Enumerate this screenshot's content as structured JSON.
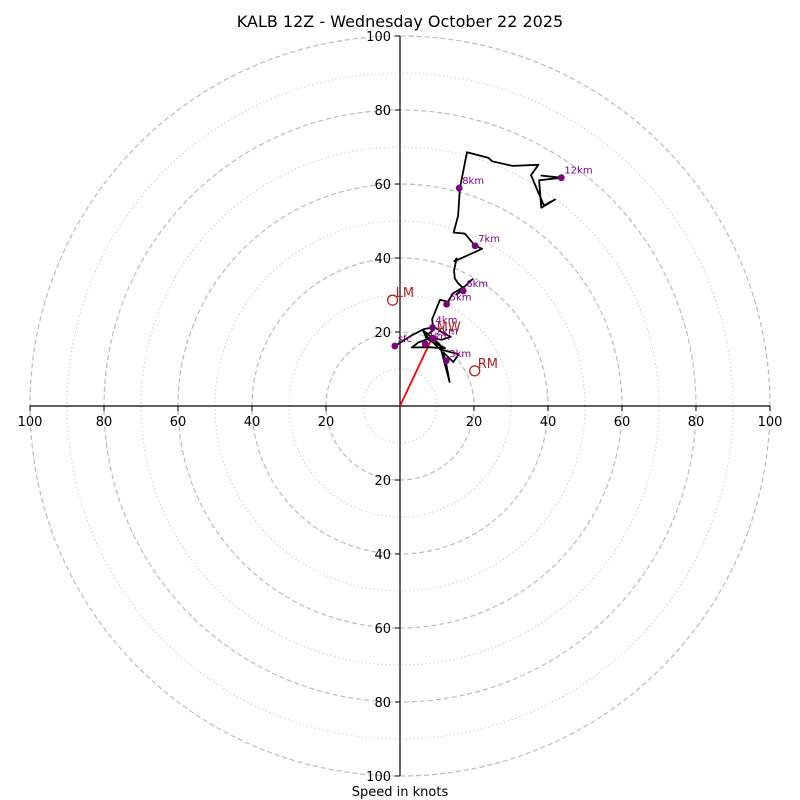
{
  "chart_data": {
    "type": "hodograph",
    "title": "KALB 12Z - Wednesday October 22 2025",
    "xlabel": "Speed in knots",
    "units": "knots",
    "axis_range": [
      -100,
      100
    ],
    "dashed_rings": [
      20,
      40,
      60,
      80,
      100
    ],
    "dotted_rings": [
      10,
      30,
      50,
      70,
      90
    ],
    "tick_labels": {
      "x_left": [
        "100",
        "80",
        "60",
        "40",
        "20"
      ],
      "x_right": [
        "20",
        "40",
        "60",
        "80",
        "100"
      ],
      "y_up": [
        "20",
        "40",
        "60",
        "80",
        "100"
      ],
      "y_down": [
        "20",
        "40",
        "60",
        "80",
        "100"
      ]
    },
    "colors": {
      "trace": "#000000",
      "height_marker": "#800080",
      "motion": "#b22222",
      "mean_wind_vector": "#ff0000",
      "ring": "#bbbbbb",
      "dotted_ring": "#cccccc"
    },
    "trace": [
      [
        -1.4,
        16.2
      ],
      [
        3,
        19
      ],
      [
        6.5,
        20.8
      ],
      [
        9.3,
        21.3
      ],
      [
        11.4,
        19.9
      ],
      [
        13.7,
        18.7
      ],
      [
        11.2,
        17.9
      ],
      [
        8.4,
        18.4
      ],
      [
        5,
        17.2
      ],
      [
        3.2,
        15.8
      ],
      [
        7.8,
        15.9
      ],
      [
        12.2,
        15.6
      ],
      [
        7.2,
        18.2
      ],
      [
        6.2,
        20.5
      ],
      [
        10.7,
        16.7
      ],
      [
        13.4,
        6.5
      ],
      [
        12.4,
        11.8
      ],
      [
        11.7,
        14.5
      ],
      [
        14.4,
        11.9
      ],
      [
        15.9,
        14
      ],
      [
        10.8,
        15.3
      ],
      [
        7,
        19.1
      ],
      [
        9,
        20.4
      ],
      [
        8.7,
        23.5
      ],
      [
        10.8,
        28.7
      ],
      [
        13.2,
        28.1
      ],
      [
        12.7,
        27.8
      ],
      [
        14.4,
        30.5
      ],
      [
        17.6,
        32.4
      ],
      [
        19.6,
        34.3
      ],
      [
        15.2,
        30.1
      ],
      [
        17.4,
        31.6
      ],
      [
        15.6,
        33.3
      ],
      [
        14.8,
        34.5
      ],
      [
        14.6,
        36.6
      ],
      [
        15.3,
        39.9
      ],
      [
        14.7,
        39.1
      ],
      [
        22.2,
        42.5
      ],
      [
        20.3,
        43.3
      ],
      [
        17.5,
        46.6
      ],
      [
        14.5,
        46.9
      ],
      [
        15.7,
        51.4
      ],
      [
        16.2,
        58.9
      ],
      [
        18.1,
        68.6
      ],
      [
        23.8,
        67.1
      ],
      [
        25,
        66.1
      ],
      [
        30.4,
        64.9
      ],
      [
        37.4,
        65.2
      ],
      [
        35.4,
        62.4
      ],
      [
        38.9,
        54.2
      ],
      [
        41.9,
        55.8
      ],
      [
        38.2,
        53.6
      ],
      [
        37.6,
        61
      ],
      [
        43.6,
        61.7
      ],
      [
        38,
        62.3
      ]
    ],
    "height_markers": [
      {
        "label": "sfc",
        "u": -1.4,
        "v": 16.2
      },
      {
        "label": "1km",
        "u": 6.8,
        "v": 16.8
      },
      {
        "label": "2km",
        "u": 8.9,
        "v": 18.3
      },
      {
        "label": "3km",
        "u": 12.5,
        "v": 12.2
      },
      {
        "label": "4km",
        "u": 8.8,
        "v": 21.2
      },
      {
        "label": "5km",
        "u": 12.6,
        "v": 27.5
      },
      {
        "label": "6km",
        "u": 17.1,
        "v": 31.1
      },
      {
        "label": "7km",
        "u": 20.3,
        "v": 43.3
      },
      {
        "label": "8km",
        "u": 16,
        "v": 58.9
      },
      {
        "label": "12km",
        "u": 43.6,
        "v": 61.7
      }
    ],
    "storm_motion": [
      {
        "label": "LM",
        "u": -2,
        "v": 28.6
      },
      {
        "label": "RM",
        "u": 20.2,
        "v": 9.5
      },
      {
        "label": "MW",
        "u": 9.1,
        "v": 19.3
      }
    ],
    "mean_wind_vector": {
      "u": 9.1,
      "v": 19.3
    }
  }
}
